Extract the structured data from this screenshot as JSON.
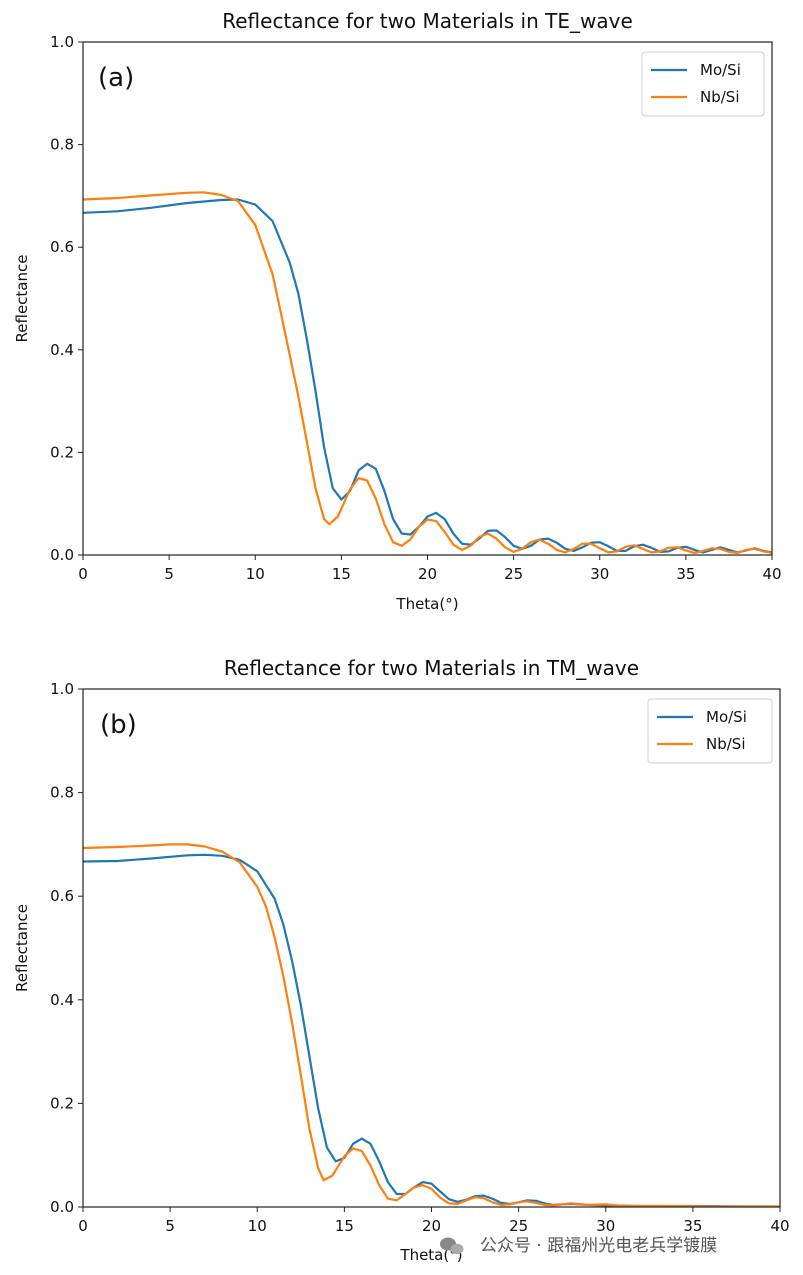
{
  "watermark": "公众号 · 跟福州光电老兵学镀膜",
  "colors": {
    "mo_si": "#1f77b4",
    "nb_si": "#ff7f0e"
  },
  "chart_data": [
    {
      "type": "line",
      "panel": "(a)",
      "title": "Reflectance for two Materials in TE_wave",
      "xlabel": "Theta(°)",
      "ylabel": "Reflectance",
      "xlim": [
        0,
        40
      ],
      "ylim": [
        0,
        1.0
      ],
      "xticks": [
        "0",
        "5",
        "10",
        "15",
        "20",
        "25",
        "30",
        "35",
        "40"
      ],
      "yticks": [
        "0.0",
        "0.2",
        "0.4",
        "0.6",
        "0.8",
        "1.0"
      ],
      "legend_position": "top-right",
      "series": [
        {
          "name": "Mo/Si",
          "points": [
            [
              0,
              0.667
            ],
            [
              2,
              0.67
            ],
            [
              4,
              0.677
            ],
            [
              6,
              0.686
            ],
            [
              8,
              0.692
            ],
            [
              9,
              0.693
            ],
            [
              10,
              0.683
            ],
            [
              11,
              0.651
            ],
            [
              12,
              0.57
            ],
            [
              12.5,
              0.51
            ],
            [
              13,
              0.42
            ],
            [
              13.5,
              0.32
            ],
            [
              14,
              0.21
            ],
            [
              14.5,
              0.13
            ],
            [
              15,
              0.108
            ],
            [
              15.5,
              0.125
            ],
            [
              16,
              0.165
            ],
            [
              16.5,
              0.178
            ],
            [
              17,
              0.168
            ],
            [
              17.5,
              0.125
            ],
            [
              18,
              0.07
            ],
            [
              18.5,
              0.042
            ],
            [
              19,
              0.04
            ],
            [
              19.5,
              0.055
            ],
            [
              20,
              0.075
            ],
            [
              20.5,
              0.082
            ],
            [
              21,
              0.07
            ],
            [
              21.5,
              0.042
            ],
            [
              22,
              0.022
            ],
            [
              22.5,
              0.02
            ],
            [
              23,
              0.032
            ],
            [
              23.5,
              0.047
            ],
            [
              24,
              0.048
            ],
            [
              24.5,
              0.035
            ],
            [
              25,
              0.018
            ],
            [
              25.5,
              0.012
            ],
            [
              26,
              0.018
            ],
            [
              26.5,
              0.03
            ],
            [
              27,
              0.032
            ],
            [
              27.5,
              0.024
            ],
            [
              28,
              0.012
            ],
            [
              28.5,
              0.008
            ],
            [
              29,
              0.015
            ],
            [
              29.5,
              0.024
            ],
            [
              30,
              0.025
            ],
            [
              30.5,
              0.017
            ],
            [
              31,
              0.008
            ],
            [
              31.5,
              0.008
            ],
            [
              32,
              0.017
            ],
            [
              32.5,
              0.02
            ],
            [
              33,
              0.014
            ],
            [
              33.5,
              0.006
            ],
            [
              34,
              0.007
            ],
            [
              34.5,
              0.014
            ],
            [
              35,
              0.016
            ],
            [
              35.5,
              0.01
            ],
            [
              36,
              0.005
            ],
            [
              36.5,
              0.01
            ],
            [
              37,
              0.015
            ],
            [
              37.5,
              0.01
            ],
            [
              38,
              0.005
            ],
            [
              38.5,
              0.009
            ],
            [
              39,
              0.013
            ],
            [
              39.5,
              0.008
            ],
            [
              40,
              0.005
            ]
          ]
        },
        {
          "name": "Nb/Si",
          "points": [
            [
              0,
              0.693
            ],
            [
              2,
              0.696
            ],
            [
              4,
              0.701
            ],
            [
              6,
              0.706
            ],
            [
              7,
              0.707
            ],
            [
              8,
              0.702
            ],
            [
              9,
              0.69
            ],
            [
              10,
              0.643
            ],
            [
              11,
              0.548
            ],
            [
              11.5,
              0.47
            ],
            [
              12,
              0.39
            ],
            [
              12.5,
              0.31
            ],
            [
              13,
              0.22
            ],
            [
              13.5,
              0.13
            ],
            [
              14,
              0.07
            ],
            [
              14.3,
              0.06
            ],
            [
              14.8,
              0.075
            ],
            [
              15.5,
              0.128
            ],
            [
              16,
              0.15
            ],
            [
              16.5,
              0.145
            ],
            [
              17,
              0.11
            ],
            [
              17.5,
              0.06
            ],
            [
              18,
              0.025
            ],
            [
              18.5,
              0.018
            ],
            [
              19,
              0.03
            ],
            [
              19.5,
              0.055
            ],
            [
              20,
              0.069
            ],
            [
              20.5,
              0.066
            ],
            [
              21,
              0.045
            ],
            [
              21.5,
              0.02
            ],
            [
              22,
              0.01
            ],
            [
              22.5,
              0.018
            ],
            [
              23,
              0.035
            ],
            [
              23.5,
              0.042
            ],
            [
              24,
              0.032
            ],
            [
              24.5,
              0.015
            ],
            [
              25,
              0.006
            ],
            [
              25.5,
              0.012
            ],
            [
              26,
              0.025
            ],
            [
              26.5,
              0.03
            ],
            [
              27,
              0.022
            ],
            [
              27.5,
              0.01
            ],
            [
              28,
              0.005
            ],
            [
              28.5,
              0.012
            ],
            [
              29,
              0.022
            ],
            [
              29.5,
              0.022
            ],
            [
              30,
              0.013
            ],
            [
              30.5,
              0.005
            ],
            [
              31,
              0.007
            ],
            [
              31.5,
              0.016
            ],
            [
              32,
              0.019
            ],
            [
              32.5,
              0.012
            ],
            [
              33,
              0.005
            ],
            [
              33.5,
              0.007
            ],
            [
              34,
              0.014
            ],
            [
              34.5,
              0.015
            ],
            [
              35,
              0.009
            ],
            [
              35.5,
              0.004
            ],
            [
              36,
              0.008
            ],
            [
              36.5,
              0.013
            ],
            [
              37,
              0.012
            ],
            [
              37.5,
              0.006
            ],
            [
              38,
              0.004
            ],
            [
              38.5,
              0.01
            ],
            [
              39,
              0.012
            ],
            [
              39.5,
              0.007
            ],
            [
              40,
              0.004
            ]
          ]
        }
      ]
    },
    {
      "type": "line",
      "panel": "(b)",
      "title": "Reflectance for two Materials in TM_wave",
      "xlabel": "Theta(°)",
      "ylabel": "Reflectance",
      "xlim": [
        0,
        40
      ],
      "ylim": [
        0,
        1.0
      ],
      "xticks": [
        "0",
        "5",
        "10",
        "15",
        "20",
        "25",
        "30",
        "35",
        "40"
      ],
      "yticks": [
        "0.0",
        "0.2",
        "0.4",
        "0.6",
        "0.8",
        "1.0"
      ],
      "legend_position": "top-right",
      "series": [
        {
          "name": "Mo/Si",
          "points": [
            [
              0,
              0.667
            ],
            [
              2,
              0.668
            ],
            [
              4,
              0.673
            ],
            [
              6,
              0.679
            ],
            [
              7,
              0.68
            ],
            [
              8,
              0.678
            ],
            [
              9,
              0.67
            ],
            [
              10,
              0.648
            ],
            [
              11,
              0.595
            ],
            [
              11.5,
              0.545
            ],
            [
              12,
              0.475
            ],
            [
              12.5,
              0.39
            ],
            [
              13,
              0.29
            ],
            [
              13.5,
              0.19
            ],
            [
              14,
              0.115
            ],
            [
              14.5,
              0.088
            ],
            [
              15,
              0.095
            ],
            [
              15.5,
              0.122
            ],
            [
              16,
              0.132
            ],
            [
              16.5,
              0.122
            ],
            [
              17,
              0.088
            ],
            [
              17.5,
              0.048
            ],
            [
              18,
              0.025
            ],
            [
              18.5,
              0.025
            ],
            [
              19,
              0.038
            ],
            [
              19.5,
              0.048
            ],
            [
              20,
              0.045
            ],
            [
              20.5,
              0.03
            ],
            [
              21,
              0.015
            ],
            [
              21.5,
              0.01
            ],
            [
              22,
              0.014
            ],
            [
              22.5,
              0.021
            ],
            [
              23,
              0.022
            ],
            [
              23.5,
              0.016
            ],
            [
              24,
              0.008
            ],
            [
              24.5,
              0.006
            ],
            [
              25,
              0.009
            ],
            [
              25.5,
              0.013
            ],
            [
              26,
              0.012
            ],
            [
              26.5,
              0.007
            ],
            [
              27,
              0.004
            ],
            [
              28,
              0.006
            ],
            [
              29,
              0.004
            ],
            [
              30,
              0.003
            ],
            [
              32,
              0.002
            ],
            [
              35,
              0.002
            ],
            [
              38,
              0.001
            ],
            [
              40,
              0.001
            ]
          ]
        },
        {
          "name": "Nb/Si",
          "points": [
            [
              0,
              0.693
            ],
            [
              2,
              0.695
            ],
            [
              4,
              0.698
            ],
            [
              5,
              0.7
            ],
            [
              6,
              0.7
            ],
            [
              7,
              0.696
            ],
            [
              8,
              0.686
            ],
            [
              9,
              0.665
            ],
            [
              10,
              0.618
            ],
            [
              10.5,
              0.58
            ],
            [
              11,
              0.52
            ],
            [
              11.5,
              0.445
            ],
            [
              12,
              0.355
            ],
            [
              12.5,
              0.255
            ],
            [
              13,
              0.15
            ],
            [
              13.5,
              0.075
            ],
            [
              13.8,
              0.052
            ],
            [
              14.3,
              0.06
            ],
            [
              15,
              0.098
            ],
            [
              15.5,
              0.113
            ],
            [
              16,
              0.108
            ],
            [
              16.5,
              0.08
            ],
            [
              17,
              0.042
            ],
            [
              17.5,
              0.016
            ],
            [
              18,
              0.013
            ],
            [
              18.5,
              0.025
            ],
            [
              19,
              0.038
            ],
            [
              19.5,
              0.042
            ],
            [
              20,
              0.035
            ],
            [
              20.5,
              0.018
            ],
            [
              21,
              0.007
            ],
            [
              21.5,
              0.006
            ],
            [
              22,
              0.013
            ],
            [
              22.5,
              0.019
            ],
            [
              23,
              0.017
            ],
            [
              23.5,
              0.009
            ],
            [
              24,
              0.004
            ],
            [
              24.5,
              0.005
            ],
            [
              25,
              0.009
            ],
            [
              25.5,
              0.011
            ],
            [
              26,
              0.008
            ],
            [
              26.5,
              0.004
            ],
            [
              27,
              0.003
            ],
            [
              28,
              0.007
            ],
            [
              29,
              0.004
            ],
            [
              30,
              0.005
            ],
            [
              31,
              0.002
            ],
            [
              33,
              0.002
            ],
            [
              36,
              0.001
            ],
            [
              40,
              0.001
            ]
          ]
        }
      ]
    }
  ]
}
